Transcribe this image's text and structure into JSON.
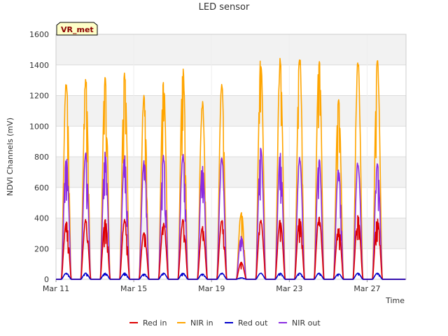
{
  "chart_data": {
    "type": "line",
    "title": "LED sensor",
    "xlabel": "Time",
    "ylabel": "NDVI Channels (mV)",
    "ylim": [
      0,
      1600
    ],
    "yticks": [
      0,
      200,
      400,
      600,
      800,
      1000,
      1200,
      1400,
      1600
    ],
    "xlim": [
      "2024-03-11",
      "2024-03-29"
    ],
    "xticks": [
      {
        "date": "2024-03-11",
        "label": "Mar 11"
      },
      {
        "date": "2024-03-15",
        "label": "Mar 15"
      },
      {
        "date": "2024-03-19",
        "label": "Mar 19"
      },
      {
        "date": "2024-03-23",
        "label": "Mar 23"
      },
      {
        "date": "2024-03-27",
        "label": "Mar 27"
      }
    ],
    "grid": true,
    "legend_position": "bottom",
    "annotation": "VR_met",
    "days": [
      "2024-03-11",
      "2024-03-12",
      "2024-03-13",
      "2024-03-14",
      "2024-03-15",
      "2024-03-16",
      "2024-03-17",
      "2024-03-18",
      "2024-03-19",
      "2024-03-20",
      "2024-03-21",
      "2024-03-22",
      "2024-03-23",
      "2024-03-24",
      "2024-03-25",
      "2024-03-26",
      "2024-03-27",
      "2024-03-28"
    ],
    "series": [
      {
        "name": "Red in",
        "color": "#dd0000",
        "daily_peak": [
          380,
          385,
          385,
          385,
          310,
          365,
          385,
          340,
          380,
          110,
          385,
          385,
          400,
          410,
          340,
          410,
          400,
          0
        ]
      },
      {
        "name": "NIR in",
        "color": "#ffa500",
        "daily_peak": [
          1295,
          1315,
          1325,
          1330,
          1215,
          1285,
          1375,
          1150,
          1275,
          440,
          1435,
          1425,
          1450,
          1430,
          1185,
          1420,
          1410,
          0
        ]
      },
      {
        "name": "Red out",
        "color": "#0000cc",
        "daily_peak": [
          40,
          40,
          40,
          40,
          35,
          40,
          40,
          35,
          40,
          10,
          40,
          40,
          40,
          40,
          35,
          40,
          40,
          0
        ]
      },
      {
        "name": "NIR out",
        "color": "#8a2be2",
        "daily_peak": [
          800,
          820,
          825,
          815,
          790,
          800,
          810,
          750,
          790,
          280,
          860,
          810,
          795,
          780,
          720,
          765,
          760,
          0
        ]
      }
    ]
  }
}
